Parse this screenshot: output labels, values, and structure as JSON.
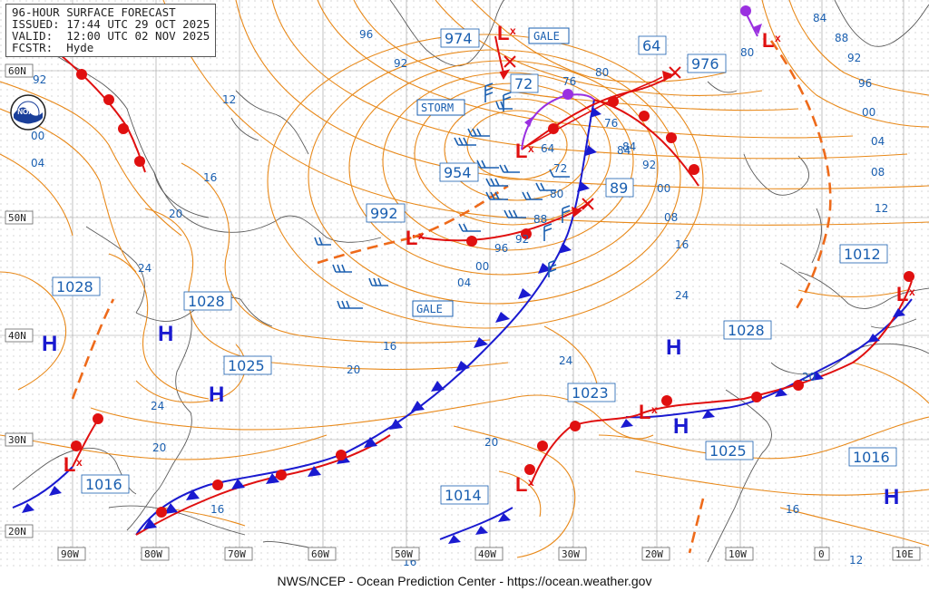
{
  "header": {
    "title": "96-HOUR SURFACE FORECAST",
    "issued": "ISSUED: 17:44 UTC 29 OCT 2025",
    "valid": "VALID:  12:00 UTC 02 NOV 2025",
    "forecaster": "FCSTR:  Hyde"
  },
  "footer": "NWS/NCEP - Ocean Prediction Center - https://ocean.weather.gov",
  "colors": {
    "isobar": "#e8891a",
    "front_cold": "#1a1ad0",
    "front_warm": "#e01010",
    "front_occluded": "#9a30e0",
    "label": "#1a5fb0",
    "low": "#e01010",
    "high": "#1a1ad0",
    "coast": "#555555",
    "grid": "#999999"
  },
  "axis": {
    "longitudes": [
      "90W",
      "80W",
      "70W",
      "60W",
      "50W",
      "40W",
      "30W",
      "20W",
      "10W",
      "0",
      "10E"
    ],
    "latitudes": [
      "60N",
      "50N",
      "40N",
      "30N",
      "20N"
    ]
  },
  "pressure_centers": [
    {
      "type": "H",
      "value": "1028"
    },
    {
      "type": "H",
      "value": "1028"
    },
    {
      "type": "H",
      "value": "1025"
    },
    {
      "type": "H",
      "value": "1028"
    },
    {
      "type": "H",
      "value": "1025"
    },
    {
      "type": "H",
      "value": "1016"
    },
    {
      "type": "L",
      "value": "1016"
    },
    {
      "type": "L",
      "value": "1014"
    },
    {
      "type": "L",
      "value": "1023"
    },
    {
      "type": "L",
      "value": "1012"
    },
    {
      "type": "L",
      "value": "992"
    },
    {
      "type": "L",
      "value": "974"
    },
    {
      "type": "L",
      "value": "954"
    },
    {
      "type": "L",
      "value": "976"
    }
  ],
  "forecast_positions": [
    "72",
    "64",
    "89"
  ],
  "warnings": [
    "GALE",
    "STORM",
    "GALE"
  ],
  "isobar_labels": [
    "96",
    "92",
    "00",
    "04",
    "12",
    "16",
    "20",
    "24",
    "20",
    "16",
    "24",
    "20",
    "16",
    "92",
    "80",
    "76",
    "64",
    "72",
    "80",
    "88",
    "92",
    "96",
    "00",
    "04",
    "84",
    "88",
    "92",
    "96",
    "00",
    "04",
    "08",
    "12",
    "84",
    "76",
    "80",
    "84",
    "92",
    "00",
    "08",
    "16",
    "24",
    "20",
    "16",
    "12",
    "24",
    "20",
    "16"
  ]
}
